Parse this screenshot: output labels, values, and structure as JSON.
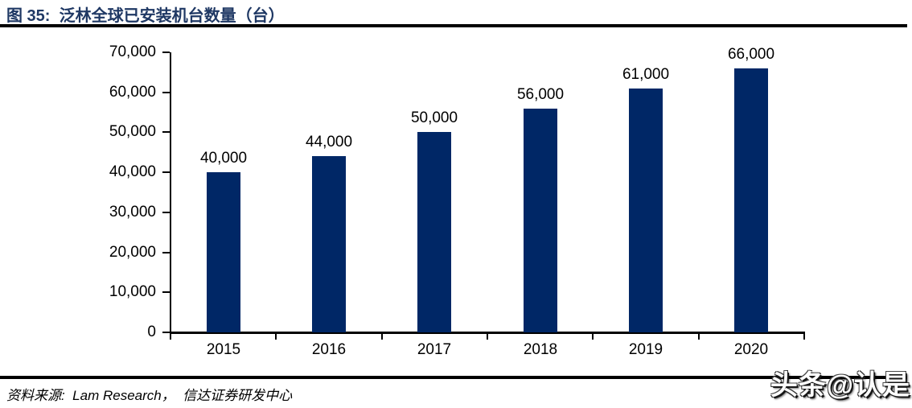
{
  "header": {
    "title": "图 35:  泛林全球已安装机台数量（台）"
  },
  "chart_data": {
    "type": "bar",
    "title": "泛林全球已安装机台数量（台）",
    "categories": [
      "2015",
      "2016",
      "2017",
      "2018",
      "2019",
      "2020"
    ],
    "values": [
      40000,
      44000,
      50000,
      56000,
      61000,
      66000
    ],
    "data_labels": [
      "40,000",
      "44,000",
      "50,000",
      "56,000",
      "61,000",
      "66,000"
    ],
    "xlabel": "",
    "ylabel": "",
    "ylim": [
      0,
      70000
    ],
    "ytick_step": 10000,
    "ytick_labels": [
      "0",
      "10,000",
      "20,000",
      "30,000",
      "40,000",
      "50,000",
      "60,000",
      "70,000"
    ],
    "bar_color": "#002766",
    "axis_color": "#000000",
    "grid": false,
    "legend": false
  },
  "footer": {
    "source": "资料来源:  Lam Research，  信达证券研发中心"
  },
  "watermark": {
    "text": "头条@认是"
  },
  "colors": {
    "title_navy": "#1F3864",
    "bar_navy": "#002766",
    "rule_black": "#000000"
  }
}
